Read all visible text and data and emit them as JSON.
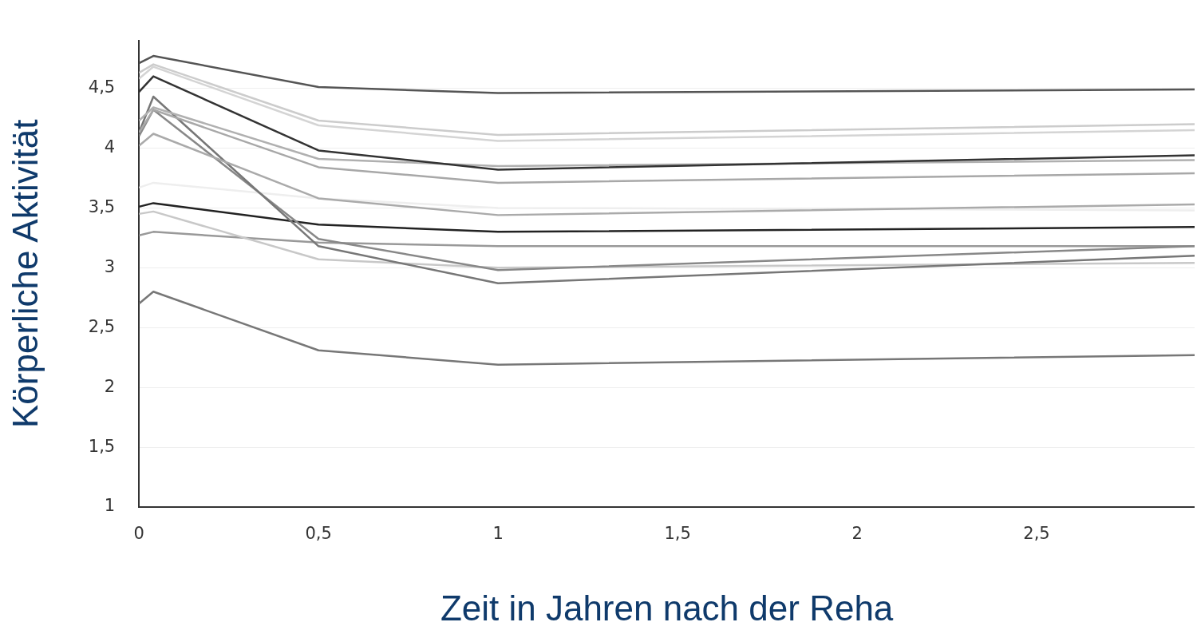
{
  "chart_data": {
    "type": "line",
    "xlabel": "Zeit in Jahren nach der Reha",
    "ylabel": "Körperliche Aktivität",
    "x": [
      0,
      0.04,
      0.5,
      1,
      2.94
    ],
    "xlim": [
      0,
      2.94
    ],
    "xticks": [
      0,
      {
        "value": 0.5,
        "label": "0,5"
      },
      1,
      {
        "value": 1.5,
        "label": "1,5"
      },
      2,
      {
        "value": 2.5,
        "label": "2,5"
      }
    ],
    "ylim": [
      1,
      4.9
    ],
    "yticks": [
      1,
      {
        "value": 1.5,
        "label": "1,5"
      },
      2,
      {
        "value": 2.5,
        "label": "2,5"
      },
      3,
      {
        "value": 3.5,
        "label": "3,5"
      },
      4,
      {
        "value": 4.5,
        "label": "4,5"
      }
    ],
    "grid": "y",
    "legend": false,
    "marker": "none",
    "line_style": "solid",
    "series": [
      {
        "color": "#555555",
        "values": [
          4.71,
          4.77,
          4.51,
          4.46,
          4.49
        ]
      },
      {
        "color": "#cccccc",
        "values": [
          4.63,
          4.7,
          4.23,
          4.11,
          4.2
        ]
      },
      {
        "color": "#d4d4d4",
        "values": [
          4.58,
          4.68,
          4.19,
          4.06,
          4.15
        ]
      },
      {
        "color": "#333333",
        "values": [
          4.47,
          4.6,
          3.98,
          3.82,
          3.94
        ]
      },
      {
        "color": "#b0b0b0",
        "values": [
          4.23,
          4.34,
          3.91,
          3.85,
          3.9
        ]
      },
      {
        "color": "#a8a8a8",
        "values": [
          4.13,
          4.32,
          3.84,
          3.71,
          3.79
        ]
      },
      {
        "color": "#aaaaaa",
        "values": [
          4.02,
          4.12,
          3.58,
          3.44,
          3.53
        ]
      },
      {
        "color": "#777777",
        "values": [
          4.13,
          4.43,
          3.18,
          2.87,
          3.1
        ]
      },
      {
        "color": "#888888",
        "values": [
          4.1,
          4.32,
          3.24,
          2.98,
          3.18
        ]
      },
      {
        "color": "#eeeeee",
        "values": [
          3.67,
          3.71,
          3.58,
          3.5,
          3.48
        ]
      },
      {
        "color": "#222222",
        "values": [
          3.51,
          3.54,
          3.36,
          3.3,
          3.34
        ]
      },
      {
        "color": "#c8c8c8",
        "values": [
          3.45,
          3.47,
          3.07,
          3.0,
          3.04
        ]
      },
      {
        "color": "#999999",
        "values": [
          3.27,
          3.3,
          3.21,
          3.18,
          3.18
        ]
      },
      {
        "color": "#777777",
        "values": [
          2.7,
          2.8,
          2.31,
          2.19,
          2.27
        ]
      }
    ]
  }
}
